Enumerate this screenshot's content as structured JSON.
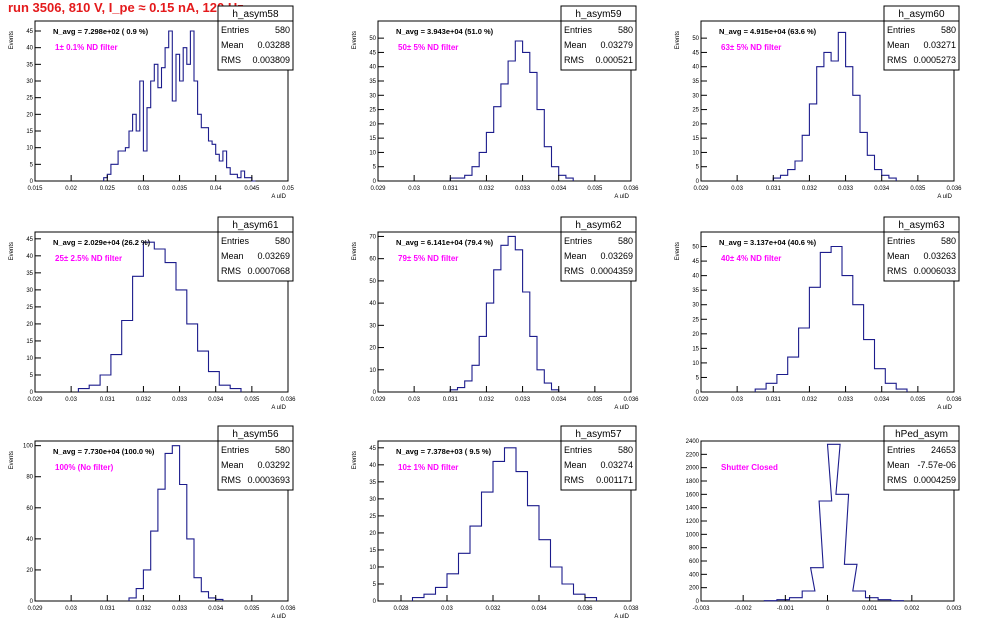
{
  "page": {
    "run_title": "run 3506,   810 V, I_pe ≈ 0.15 nA, 120 Hz"
  },
  "colors": {
    "histogram": "#1c1c8c",
    "annotation": "#ff00ff",
    "title": "#e41a1c",
    "axis": "#000000"
  },
  "stat_labels": [
    "Entries",
    "Mean",
    "RMS"
  ],
  "chart_data": [
    {
      "type": "histogram",
      "name": "h_asym58",
      "entries": "580",
      "mean": "0.03288",
      "rms": "0.003809",
      "navg": "N_avg = 7.298e+02 ( 0.9 %)",
      "filter": "1± 0.1% ND filter",
      "ylabel": "Events",
      "xlabel": "A uID",
      "xlim": [
        0.015,
        0.05
      ],
      "xticks": [
        "0.015",
        "0.02",
        "0.025",
        "0.03",
        "0.035",
        "0.04",
        "0.045",
        "0.05"
      ],
      "ylim": [
        0,
        48
      ],
      "yticks": [
        "0",
        "5",
        "10",
        "15",
        "20",
        "25",
        "30",
        "35",
        "40",
        "45"
      ],
      "bins_x": [
        0.0245,
        0.025,
        0.0255,
        0.026,
        0.0265,
        0.027,
        0.0275,
        0.028,
        0.0285,
        0.029,
        0.0295,
        0.03,
        0.0305,
        0.031,
        0.0315,
        0.032,
        0.0325,
        0.033,
        0.0335,
        0.034,
        0.0345,
        0.035,
        0.0355,
        0.036,
        0.0365,
        0.037,
        0.0375,
        0.038,
        0.0385,
        0.039,
        0.0395,
        0.04,
        0.0405,
        0.041,
        0.0415,
        0.042,
        0.0425,
        0.043,
        0.0435,
        0.044,
        0.0445,
        0.045
      ],
      "bins_y": [
        1,
        2,
        5,
        5,
        9,
        9,
        10,
        15,
        20,
        15,
        30,
        9,
        22,
        30,
        35,
        28,
        34,
        40,
        45,
        24,
        38,
        30,
        40,
        35,
        45,
        30,
        20,
        16,
        16,
        12,
        11,
        8,
        6,
        9,
        4,
        2,
        2,
        1,
        3,
        1,
        1,
        0
      ]
    },
    {
      "type": "histogram",
      "name": "h_asym59",
      "entries": "580",
      "mean": "0.03279",
      "rms": "0.000521",
      "navg": "N_avg = 3.943e+04 (51.0 %)",
      "filter": "50± 5% ND filter",
      "ylabel": "Events",
      "xlabel": "A uID",
      "xlim": [
        0.029,
        0.036
      ],
      "xticks": [
        "0.029",
        "0.03",
        "0.031",
        "0.032",
        "0.033",
        "0.034",
        "0.035",
        "0.036"
      ],
      "ylim": [
        0,
        56
      ],
      "yticks": [
        "0",
        "5",
        "10",
        "15",
        "20",
        "25",
        "30",
        "35",
        "40",
        "45",
        "50"
      ],
      "bins_x": [
        0.031,
        0.0312,
        0.0314,
        0.0316,
        0.0318,
        0.032,
        0.0322,
        0.0324,
        0.0326,
        0.0328,
        0.033,
        0.0332,
        0.0334,
        0.0336,
        0.0338,
        0.034,
        0.0342
      ],
      "bins_y": [
        1,
        1,
        2,
        5,
        10,
        17,
        26,
        34,
        42,
        49,
        45,
        38,
        25,
        12,
        5,
        2,
        1
      ]
    },
    {
      "type": "histogram",
      "name": "h_asym60",
      "entries": "580",
      "mean": "0.03271",
      "rms": "0.0005273",
      "navg": "N_avg = 4.915e+04 (63.6 %)",
      "filter": "63± 5% ND filter",
      "ylabel": "Events",
      "xlabel": "A uID",
      "xlim": [
        0.029,
        0.036
      ],
      "xticks": [
        "0.029",
        "0.03",
        "0.031",
        "0.032",
        "0.033",
        "0.034",
        "0.035",
        "0.036"
      ],
      "ylim": [
        0,
        56
      ],
      "yticks": [
        "0",
        "5",
        "10",
        "15",
        "20",
        "25",
        "30",
        "35",
        "40",
        "45",
        "50"
      ],
      "bins_x": [
        0.031,
        0.0312,
        0.0314,
        0.0316,
        0.0318,
        0.032,
        0.0322,
        0.0324,
        0.0326,
        0.0328,
        0.033,
        0.0332,
        0.0334,
        0.0336,
        0.0338,
        0.034,
        0.0342
      ],
      "bins_y": [
        1,
        2,
        4,
        7,
        16,
        27,
        40,
        45,
        42,
        52,
        40,
        30,
        17,
        9,
        4,
        2,
        1
      ]
    },
    {
      "type": "histogram",
      "name": "h_asym61",
      "entries": "580",
      "mean": "0.03269",
      "rms": "0.0007068",
      "navg": "N_avg = 2.029e+04 (26.2 %)",
      "filter": "25± 2.5% ND filter",
      "ylabel": "Events",
      "xlabel": "A uID",
      "xlim": [
        0.029,
        0.036
      ],
      "xticks": [
        "0.029",
        "0.03",
        "0.031",
        "0.032",
        "0.033",
        "0.034",
        "0.035",
        "0.036"
      ],
      "ylim": [
        0,
        47
      ],
      "yticks": [
        "0",
        "5",
        "10",
        "15",
        "20",
        "25",
        "30",
        "35",
        "40",
        "45"
      ],
      "bins_x": [
        0.0302,
        0.0305,
        0.0308,
        0.0311,
        0.0314,
        0.0317,
        0.032,
        0.0323,
        0.0326,
        0.0329,
        0.0332,
        0.0335,
        0.0338,
        0.0341,
        0.0344
      ],
      "bins_y": [
        1,
        2,
        5,
        11,
        21,
        34,
        44,
        42,
        38,
        30,
        20,
        12,
        6,
        2,
        1
      ]
    },
    {
      "type": "histogram",
      "name": "h_asym62",
      "entries": "580",
      "mean": "0.03269",
      "rms": "0.0004359",
      "navg": "N_avg = 6.141e+04 (79.4 %)",
      "filter": "79± 5% ND filter",
      "ylabel": "Events",
      "xlabel": "A uID",
      "xlim": [
        0.029,
        0.036
      ],
      "xticks": [
        "0.029",
        "0.03",
        "0.031",
        "0.032",
        "0.033",
        "0.034",
        "0.035",
        "0.036"
      ],
      "ylim": [
        0,
        72
      ],
      "yticks": [
        "0",
        "10",
        "20",
        "30",
        "40",
        "50",
        "60",
        "70"
      ],
      "bins_x": [
        0.031,
        0.0312,
        0.0314,
        0.0316,
        0.0318,
        0.032,
        0.0322,
        0.0324,
        0.0326,
        0.0328,
        0.033,
        0.0332,
        0.0334,
        0.0336,
        0.0338
      ],
      "bins_y": [
        1,
        2,
        5,
        12,
        25,
        40,
        55,
        66,
        70,
        64,
        45,
        25,
        10,
        4,
        1
      ]
    },
    {
      "type": "histogram",
      "name": "h_asym63",
      "entries": "580",
      "mean": "0.03263",
      "rms": "0.0006033",
      "navg": "N_avg = 3.137e+04 (40.6 %)",
      "filter": "40± 4% ND filter",
      "ylabel": "Events",
      "xlabel": "A uID",
      "xlim": [
        0.029,
        0.036
      ],
      "xticks": [
        "0.029",
        "0.03",
        "0.031",
        "0.032",
        "0.033",
        "0.034",
        "0.035",
        "0.036"
      ],
      "ylim": [
        0,
        55
      ],
      "yticks": [
        "0",
        "5",
        "10",
        "15",
        "20",
        "25",
        "30",
        "35",
        "40",
        "45",
        "50"
      ],
      "bins_x": [
        0.0305,
        0.0308,
        0.0311,
        0.0314,
        0.0317,
        0.032,
        0.0323,
        0.0326,
        0.0329,
        0.0332,
        0.0335,
        0.0338,
        0.0341,
        0.0344
      ],
      "bins_y": [
        1,
        3,
        6,
        12,
        22,
        36,
        48,
        50,
        40,
        30,
        18,
        8,
        3,
        1
      ]
    },
    {
      "type": "histogram",
      "name": "h_asym56",
      "entries": "580",
      "mean": "0.03292",
      "rms": "0.0003693",
      "navg": "N_avg = 7.730e+04 (100.0 %)",
      "filter": "100% (No filter)",
      "ylabel": "Events",
      "xlabel": "A uID",
      "xlim": [
        0.029,
        0.036
      ],
      "xticks": [
        "0.029",
        "0.03",
        "0.031",
        "0.032",
        "0.033",
        "0.034",
        "0.035",
        "0.036"
      ],
      "ylim": [
        0,
        103
      ],
      "yticks": [
        "0",
        "20",
        "40",
        "60",
        "80",
        "100"
      ],
      "bins_x": [
        0.0316,
        0.0318,
        0.032,
        0.0322,
        0.0324,
        0.0326,
        0.0328,
        0.033,
        0.0332,
        0.0334,
        0.0336,
        0.0338,
        0.034
      ],
      "bins_y": [
        2,
        8,
        20,
        45,
        72,
        95,
        100,
        75,
        40,
        15,
        6,
        2,
        1
      ]
    },
    {
      "type": "histogram",
      "name": "h_asym57",
      "entries": "580",
      "mean": "0.03274",
      "rms": "0.001171",
      "navg": "N_avg = 7.378e+03 ( 9.5 %)",
      "filter": "10± 1% ND filter",
      "ylabel": "Events",
      "xlabel": "A uID",
      "xlim": [
        0.027,
        0.038
      ],
      "xticks": [
        "0.028",
        "0.03",
        "0.032",
        "0.034",
        "0.036",
        "0.038"
      ],
      "ylim": [
        0,
        47
      ],
      "yticks": [
        "0",
        "5",
        "10",
        "15",
        "20",
        "25",
        "30",
        "35",
        "40",
        "45"
      ],
      "bins_x": [
        0.0285,
        0.029,
        0.0295,
        0.03,
        0.0305,
        0.031,
        0.0315,
        0.032,
        0.0325,
        0.033,
        0.0335,
        0.034,
        0.0345,
        0.035,
        0.0355,
        0.036
      ],
      "bins_y": [
        1,
        2,
        4,
        8,
        14,
        22,
        32,
        41,
        45,
        38,
        28,
        18,
        10,
        5,
        2,
        1
      ]
    },
    {
      "type": "histogram",
      "name": "hPed_asym",
      "entries": "24653",
      "mean": "-7.57e-06",
      "rms": "0.0004259",
      "navg": "",
      "filter": "Shutter Closed",
      "ylabel": "",
      "xlabel": "",
      "xlim": [
        -0.003,
        0.003
      ],
      "xticks": [
        "-0.003",
        "-0.002",
        "-0.001",
        "0",
        "0.001",
        "0.002",
        "0.003"
      ],
      "ylim": [
        0,
        2400
      ],
      "yticks": [
        "0",
        "200",
        "400",
        "600",
        "800",
        "1000",
        "1200",
        "1400",
        "1600",
        "1800",
        "2000",
        "2200",
        "2400"
      ],
      "bins_x": [
        -0.0015,
        -0.0012,
        -0.0009,
        -0.0006,
        -0.0004,
        -0.0002,
        0.0,
        0.0002,
        0.0004,
        0.0006,
        0.0009,
        0.0012,
        0.0015
      ],
      "bins_y": [
        5,
        20,
        50,
        150,
        500,
        1500,
        2350,
        1600,
        550,
        150,
        50,
        20,
        5
      ]
    }
  ]
}
